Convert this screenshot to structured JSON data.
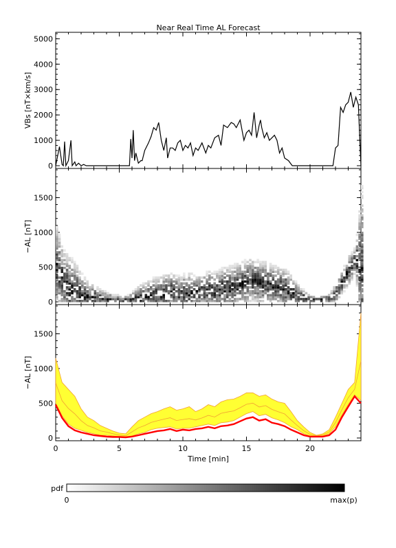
{
  "title": "Near Real Time AL Forecast",
  "chart_data": [
    {
      "type": "line",
      "panel": "vbs",
      "ylabel": "VBs [nT×km/s]",
      "ylim": [
        0,
        5200
      ],
      "yticks": [
        0,
        1000,
        2000,
        3000,
        4000,
        5000
      ],
      "xlim": [
        0,
        24
      ],
      "x": [
        0,
        0.3,
        0.5,
        0.6,
        0.7,
        0.8,
        1.0,
        1.2,
        1.3,
        1.5,
        1.6,
        1.8,
        2.0,
        2.2,
        2.4,
        2.6,
        3.0,
        3.5,
        4.0,
        4.5,
        5.0,
        5.5,
        5.8,
        5.9,
        6.0,
        6.1,
        6.2,
        6.3,
        6.4,
        6.5,
        6.7,
        6.8,
        7.0,
        7.3,
        7.5,
        7.7,
        7.9,
        8.1,
        8.3,
        8.5,
        8.7,
        8.8,
        9.0,
        9.2,
        9.4,
        9.6,
        9.8,
        10.0,
        10.2,
        10.4,
        10.6,
        10.8,
        11.0,
        11.2,
        11.5,
        11.8,
        12.0,
        12.2,
        12.5,
        12.8,
        13.0,
        13.2,
        13.5,
        13.8,
        14.0,
        14.2,
        14.5,
        14.8,
        15.0,
        15.2,
        15.4,
        15.6,
        15.8,
        16.0,
        16.1,
        16.2,
        16.4,
        16.6,
        16.8,
        17.0,
        17.2,
        17.4,
        17.6,
        17.8,
        18.0,
        18.3,
        18.6,
        19.0,
        19.5,
        20.0,
        20.5,
        21.0,
        21.4,
        21.6,
        21.8,
        22.0,
        22.2,
        22.4,
        22.6,
        22.8,
        23.0,
        23.2,
        23.4,
        23.6,
        23.8,
        23.9,
        24.0
      ],
      "values": [
        0,
        750,
        50,
        0,
        950,
        0,
        200,
        1000,
        0,
        150,
        0,
        100,
        0,
        50,
        0,
        0,
        0,
        0,
        0,
        0,
        0,
        0,
        0,
        1050,
        300,
        1400,
        200,
        500,
        300,
        100,
        200,
        200,
        600,
        900,
        1150,
        1500,
        1400,
        1700,
        1000,
        600,
        1100,
        300,
        700,
        700,
        600,
        900,
        1000,
        600,
        800,
        700,
        900,
        400,
        700,
        600,
        900,
        500,
        800,
        700,
        1100,
        1200,
        800,
        1600,
        1500,
        1700,
        1650,
        1500,
        1800,
        1000,
        1300,
        1400,
        1200,
        2100,
        1100,
        1600,
        1800,
        1500,
        1100,
        1300,
        1000,
        1100,
        1200,
        1000,
        500,
        700,
        300,
        200,
        0,
        0,
        0,
        0,
        0,
        0,
        0,
        0,
        0,
        700,
        800,
        2300,
        2100,
        2400,
        2500,
        2900,
        2300,
        2700,
        2400,
        1200,
        0
      ]
    },
    {
      "type": "heatmap",
      "panel": "pdf",
      "ylabel": "−AL [nT]",
      "ylim": [
        0,
        1900
      ],
      "yticks": [
        0,
        500,
        1000,
        1500
      ],
      "xlim": [
        0,
        24
      ]
    },
    {
      "type": "area",
      "panel": "forecast",
      "ylabel": "−AL [nT]",
      "xlabel": "Time [min]",
      "ylim": [
        0,
        1900
      ],
      "yticks": [
        0,
        500,
        1000,
        1500
      ],
      "xlim": [
        0,
        24
      ],
      "xticks": [
        0,
        5,
        10,
        15,
        20
      ],
      "colors": {
        "median": "#ff0000",
        "band": "#ffff33",
        "outline": "#f2a033"
      },
      "x": [
        0,
        0.5,
        1.0,
        1.5,
        2.0,
        2.5,
        3.0,
        3.5,
        4.0,
        4.5,
        5.0,
        5.5,
        6.0,
        6.5,
        7.0,
        7.5,
        8.0,
        8.5,
        9.0,
        9.5,
        10.0,
        10.5,
        11.0,
        11.5,
        12.0,
        12.5,
        13.0,
        13.5,
        14.0,
        14.5,
        15.0,
        15.5,
        16.0,
        16.5,
        17.0,
        17.5,
        18.0,
        18.5,
        19.0,
        19.5,
        20.0,
        20.5,
        21.0,
        21.5,
        22.0,
        22.5,
        23.0,
        23.5,
        24.0
      ],
      "median": [
        480,
        290,
        170,
        110,
        80,
        60,
        40,
        30,
        20,
        15,
        15,
        10,
        20,
        40,
        60,
        80,
        100,
        110,
        130,
        100,
        120,
        110,
        130,
        140,
        160,
        140,
        170,
        180,
        200,
        240,
        280,
        300,
        250,
        270,
        220,
        200,
        170,
        120,
        80,
        40,
        20,
        20,
        20,
        40,
        120,
        300,
        450,
        600,
        500
      ],
      "band_low": [
        500,
        320,
        200,
        140,
        110,
        80,
        60,
        40,
        40,
        30,
        20,
        10,
        30,
        60,
        80,
        120,
        140,
        150,
        160,
        130,
        140,
        140,
        160,
        180,
        200,
        180,
        220,
        230,
        250,
        300,
        350,
        380,
        320,
        340,
        290,
        260,
        220,
        160,
        120,
        60,
        30,
        20,
        30,
        60,
        160,
        330,
        480,
        620,
        540
      ],
      "band_high": [
        1150,
        800,
        700,
        600,
        420,
        300,
        250,
        180,
        140,
        100,
        70,
        60,
        160,
        250,
        300,
        350,
        380,
        420,
        450,
        400,
        420,
        450,
        380,
        420,
        480,
        450,
        520,
        550,
        560,
        600,
        650,
        650,
        600,
        620,
        560,
        520,
        500,
        380,
        250,
        160,
        80,
        40,
        60,
        120,
        300,
        500,
        700,
        800,
        1800
      ]
    }
  ],
  "colorbar": {
    "label": "pdf",
    "min_label": "0",
    "max_label": "max(p)"
  }
}
